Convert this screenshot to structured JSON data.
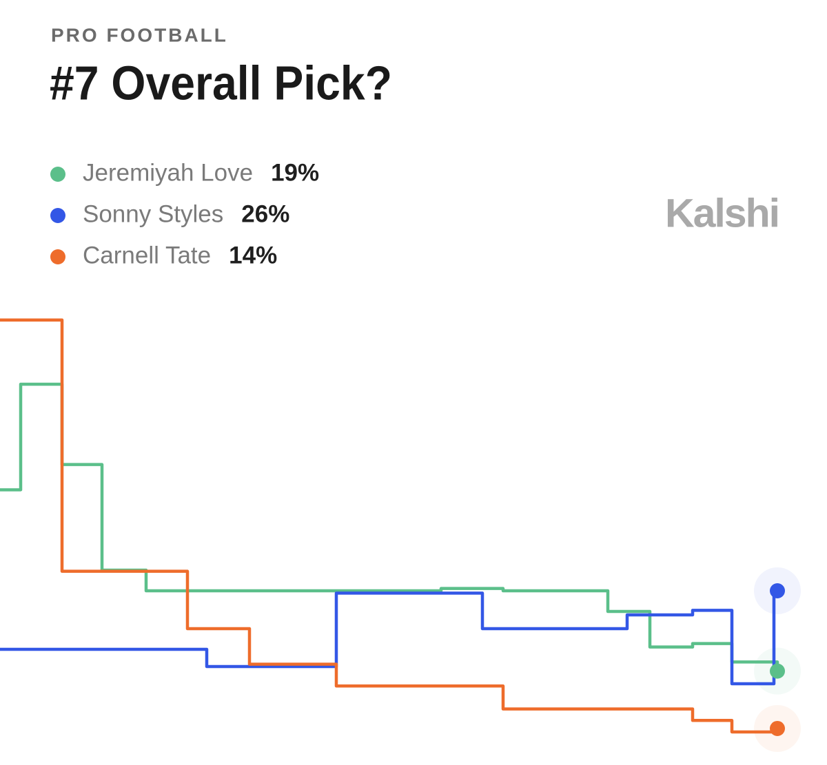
{
  "chart_data": {
    "type": "line",
    "step": true,
    "kicker": "PRO FOOTBALL",
    "title": "#7 Overall Pick?",
    "brand": "Kalshi",
    "x": [
      0,
      30,
      90,
      148,
      212,
      272,
      300,
      362,
      488,
      640,
      700,
      730,
      882,
      910,
      943,
      1005,
      1062,
      1123,
      1128
    ],
    "xlim": [
      0,
      1128
    ],
    "ylim": [
      12,
      52
    ],
    "series": [
      {
        "name": "Jeremiyah Love",
        "color": "#5bbf8a",
        "last_label": "19%",
        "values": [
          34.8,
          44.0,
          37.0,
          27.8,
          26.0,
          26.0,
          26.0,
          26.0,
          26.0,
          26.2,
          26.2,
          26.0,
          24.2,
          24.2,
          21.1,
          21.4,
          19.8,
          19.8,
          19
        ]
      },
      {
        "name": "Sonny Styles",
        "color": "#3357e6",
        "last_label": "26%",
        "values": [
          20.9,
          20.9,
          20.9,
          20.9,
          20.9,
          20.9,
          19.4,
          19.4,
          25.8,
          25.8,
          22.7,
          22.7,
          22.7,
          23.9,
          23.9,
          24.3,
          17.9,
          26,
          26
        ]
      },
      {
        "name": "Carnell Tate",
        "color": "#ee6c2b",
        "last_label": "14%",
        "values": [
          49.6,
          49.6,
          27.7,
          27.7,
          27.7,
          22.7,
          22.7,
          19.6,
          17.7,
          17.7,
          17.7,
          15.7,
          15.7,
          15.7,
          15.7,
          14.7,
          13.7,
          13.7,
          14
        ]
      }
    ]
  }
}
